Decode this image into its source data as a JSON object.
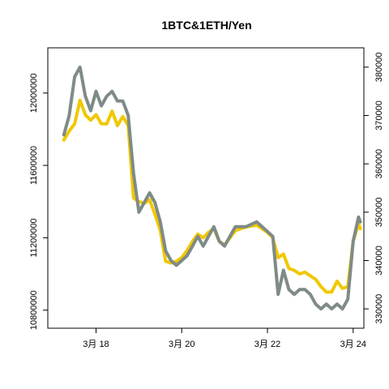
{
  "chart_data": {
    "type": "line",
    "title": "1BTC&1ETH/Yen",
    "xlabel": "",
    "ylabel": "",
    "x_ticks": [
      {
        "date": "2021-03-18",
        "label": "3月 18"
      },
      {
        "date": "2021-03-20",
        "label": "3月 20"
      },
      {
        "date": "2021-03-22",
        "label": "3月 22"
      },
      {
        "date": "2021-03-24",
        "label": "3月 24"
      }
    ],
    "xlim": [
      "2021-03-16T21:00",
      "2021-03-24T06:00"
    ],
    "y_left": {
      "lim": [
        10700000,
        12250000
      ],
      "ticks": [
        10800000,
        11200000,
        11600000,
        12000000
      ],
      "tick_labels": [
        "10800000",
        "11200000",
        "11600000",
        "12000000"
      ]
    },
    "y_right": {
      "lim": [
        326000,
        384000
      ],
      "ticks": [
        330000,
        340000,
        350000,
        360000,
        370000,
        380000
      ],
      "tick_labels": [
        "330000",
        "340000",
        "350000",
        "360000",
        "370000",
        "380000"
      ]
    },
    "series": [
      {
        "axis": "left",
        "color": "#f0c800",
        "points": [
          [
            "2021-03-17T06:00",
            11740000
          ],
          [
            "2021-03-17T09:00",
            11790000
          ],
          [
            "2021-03-17T12:00",
            11830000
          ],
          [
            "2021-03-17T15:00",
            11960000
          ],
          [
            "2021-03-17T18:00",
            11880000
          ],
          [
            "2021-03-17T21:00",
            11850000
          ],
          [
            "2021-03-18T00:00",
            11880000
          ],
          [
            "2021-03-18T03:00",
            11830000
          ],
          [
            "2021-03-18T06:00",
            11830000
          ],
          [
            "2021-03-18T09:00",
            11900000
          ],
          [
            "2021-03-18T12:00",
            11820000
          ],
          [
            "2021-03-18T15:00",
            11870000
          ],
          [
            "2021-03-18T18:00",
            11820000
          ],
          [
            "2021-03-18T21:00",
            11420000
          ],
          [
            "2021-03-19T00:00",
            11400000
          ],
          [
            "2021-03-19T03:00",
            11390000
          ],
          [
            "2021-03-19T06:00",
            11410000
          ],
          [
            "2021-03-19T09:00",
            11330000
          ],
          [
            "2021-03-19T12:00",
            11240000
          ],
          [
            "2021-03-19T15:00",
            11070000
          ],
          [
            "2021-03-19T18:00",
            11060000
          ],
          [
            "2021-03-19T21:00",
            11070000
          ],
          [
            "2021-03-20T00:00",
            11090000
          ],
          [
            "2021-03-20T03:00",
            11130000
          ],
          [
            "2021-03-20T06:00",
            11180000
          ],
          [
            "2021-03-20T09:00",
            11220000
          ],
          [
            "2021-03-20T12:00",
            11200000
          ],
          [
            "2021-03-20T15:00",
            11230000
          ],
          [
            "2021-03-20T18:00",
            11250000
          ],
          [
            "2021-03-20T21:00",
            11180000
          ],
          [
            "2021-03-21T00:00",
            11160000
          ],
          [
            "2021-03-21T06:00",
            11240000
          ],
          [
            "2021-03-21T12:00",
            11260000
          ],
          [
            "2021-03-21T18:00",
            11270000
          ],
          [
            "2021-03-22T00:00",
            11230000
          ],
          [
            "2021-03-22T03:00",
            11200000
          ],
          [
            "2021-03-22T06:00",
            11090000
          ],
          [
            "2021-03-22T09:00",
            11110000
          ],
          [
            "2021-03-22T12:00",
            11030000
          ],
          [
            "2021-03-22T15:00",
            11020000
          ],
          [
            "2021-03-22T18:00",
            11000000
          ],
          [
            "2021-03-22T21:00",
            11010000
          ],
          [
            "2021-03-23T00:00",
            10990000
          ],
          [
            "2021-03-23T03:00",
            10970000
          ],
          [
            "2021-03-23T06:00",
            10930000
          ],
          [
            "2021-03-23T09:00",
            10900000
          ],
          [
            "2021-03-23T12:00",
            10900000
          ],
          [
            "2021-03-23T15:00",
            10960000
          ],
          [
            "2021-03-23T18:00",
            10920000
          ],
          [
            "2021-03-23T21:00",
            10930000
          ],
          [
            "2021-03-24T00:00",
            11180000
          ],
          [
            "2021-03-24T03:00",
            11280000
          ],
          [
            "2021-03-24T04:00",
            11250000
          ]
        ]
      },
      {
        "axis": "right",
        "color": "#7f8b86",
        "points": [
          [
            "2021-03-17T06:00",
            366000
          ],
          [
            "2021-03-17T09:00",
            370000
          ],
          [
            "2021-03-17T12:00",
            378000
          ],
          [
            "2021-03-17T15:00",
            380000
          ],
          [
            "2021-03-17T18:00",
            374000
          ],
          [
            "2021-03-17T21:00",
            371000
          ],
          [
            "2021-03-18T00:00",
            375000
          ],
          [
            "2021-03-18T03:00",
            372000
          ],
          [
            "2021-03-18T06:00",
            374000
          ],
          [
            "2021-03-18T09:00",
            375000
          ],
          [
            "2021-03-18T12:00",
            373000
          ],
          [
            "2021-03-18T15:00",
            373000
          ],
          [
            "2021-03-18T18:00",
            370000
          ],
          [
            "2021-03-18T21:00",
            358000
          ],
          [
            "2021-03-19T00:00",
            350000
          ],
          [
            "2021-03-19T03:00",
            352000
          ],
          [
            "2021-03-19T06:00",
            354000
          ],
          [
            "2021-03-19T09:00",
            352000
          ],
          [
            "2021-03-19T12:00",
            348000
          ],
          [
            "2021-03-19T15:00",
            342000
          ],
          [
            "2021-03-19T18:00",
            340000
          ],
          [
            "2021-03-19T21:00",
            339000
          ],
          [
            "2021-03-20T00:00",
            340000
          ],
          [
            "2021-03-20T03:00",
            341000
          ],
          [
            "2021-03-20T06:00",
            343000
          ],
          [
            "2021-03-20T09:00",
            345000
          ],
          [
            "2021-03-20T12:00",
            343000
          ],
          [
            "2021-03-20T15:00",
            345000
          ],
          [
            "2021-03-20T18:00",
            347000
          ],
          [
            "2021-03-20T21:00",
            344000
          ],
          [
            "2021-03-21T00:00",
            343000
          ],
          [
            "2021-03-21T06:00",
            347000
          ],
          [
            "2021-03-21T12:00",
            347000
          ],
          [
            "2021-03-21T18:00",
            348000
          ],
          [
            "2021-03-22T00:00",
            346000
          ],
          [
            "2021-03-22T03:00",
            345000
          ],
          [
            "2021-03-22T06:00",
            333000
          ],
          [
            "2021-03-22T09:00",
            338000
          ],
          [
            "2021-03-22T12:00",
            334000
          ],
          [
            "2021-03-22T15:00",
            333000
          ],
          [
            "2021-03-22T18:00",
            334000
          ],
          [
            "2021-03-22T21:00",
            334000
          ],
          [
            "2021-03-23T00:00",
            333000
          ],
          [
            "2021-03-23T03:00",
            331000
          ],
          [
            "2021-03-23T06:00",
            330000
          ],
          [
            "2021-03-23T09:00",
            331000
          ],
          [
            "2021-03-23T12:00",
            330000
          ],
          [
            "2021-03-23T15:00",
            331000
          ],
          [
            "2021-03-23T18:00",
            330000
          ],
          [
            "2021-03-23T21:00",
            332000
          ],
          [
            "2021-03-24T00:00",
            344000
          ],
          [
            "2021-03-24T03:00",
            349000
          ],
          [
            "2021-03-24T04:00",
            348000
          ]
        ]
      }
    ],
    "grid": false,
    "legend": "none"
  }
}
